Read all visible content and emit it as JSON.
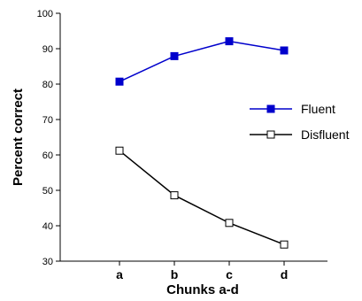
{
  "chart_data": {
    "type": "line",
    "xlabel": "Chunks a-d",
    "ylabel": "Percent correct",
    "categories": [
      "a",
      "b",
      "c",
      "d"
    ],
    "ylim": [
      30,
      100
    ],
    "yticks": [
      30,
      40,
      50,
      60,
      70,
      80,
      90,
      100
    ],
    "grid": false,
    "legend_position": "right",
    "series": [
      {
        "name": "Fluent",
        "values": [
          80.7,
          87.9,
          92.1,
          89.5
        ],
        "color": "#0000cc",
        "marker": "filled-square"
      },
      {
        "name": "Disfluent",
        "values": [
          61.2,
          48.6,
          40.8,
          34.7
        ],
        "color": "#000000",
        "marker": "open-square"
      }
    ]
  }
}
